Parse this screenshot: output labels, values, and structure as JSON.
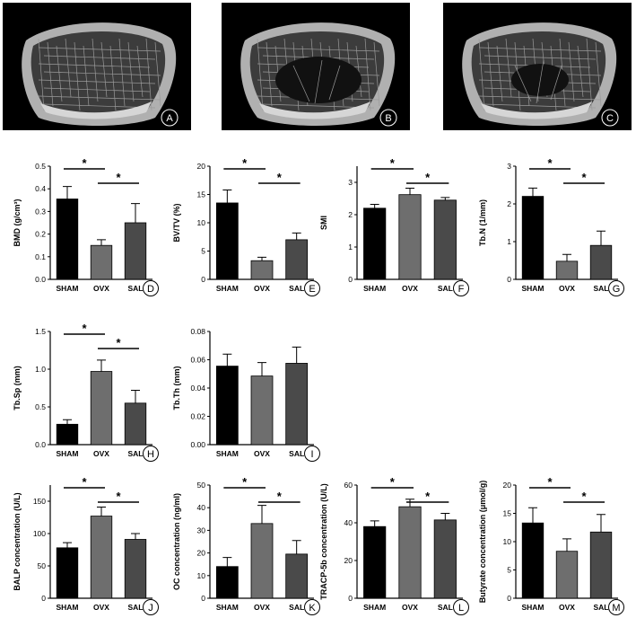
{
  "images": [
    {
      "panel": "A",
      "kind": "sham"
    },
    {
      "panel": "B",
      "kind": "ovx"
    },
    {
      "panel": "C",
      "kind": "sal"
    }
  ],
  "colors": [
    "#000000",
    "#6e6e6e",
    "#4a4a4a"
  ],
  "chart_data": [
    {
      "panel": "D",
      "type": "bar",
      "categories": [
        "SHAM",
        "OVX",
        "SAL"
      ],
      "values": [
        0.355,
        0.15,
        0.25
      ],
      "errors": [
        0.055,
        0.025,
        0.085
      ],
      "ylabel": "BMD (g/cm³)",
      "ylim": [
        0,
        0.5
      ],
      "ticks": [
        "0.0",
        "0.1",
        "0.2",
        "0.3",
        "0.4",
        "0.5"
      ],
      "significance": [
        {
          "from": 0,
          "to": 1,
          "label": "*"
        },
        {
          "from": 1,
          "to": 2,
          "label": "*"
        }
      ]
    },
    {
      "panel": "E",
      "type": "bar",
      "categories": [
        "SHAM",
        "OVX",
        "SAL"
      ],
      "values": [
        13.5,
        3.3,
        7.0
      ],
      "errors": [
        2.3,
        0.6,
        1.2
      ],
      "ylabel": "BV/TV (%)",
      "ylim": [
        0,
        20
      ],
      "ticks": [
        "0",
        "5",
        "10",
        "15",
        "20"
      ],
      "significance": [
        {
          "from": 0,
          "to": 1,
          "label": "*"
        },
        {
          "from": 1,
          "to": 2,
          "label": "*"
        }
      ]
    },
    {
      "panel": "F",
      "type": "bar",
      "categories": [
        "SHAM",
        "OVX",
        "SAL"
      ],
      "values": [
        2.2,
        2.62,
        2.45
      ],
      "errors": [
        0.12,
        0.2,
        0.08
      ],
      "ylabel": "SMI",
      "ylim": [
        0,
        3.5
      ],
      "ticks": [
        "0",
        "1",
        "2",
        "3"
      ],
      "significance": [
        {
          "from": 0,
          "to": 1,
          "label": "*"
        },
        {
          "from": 1,
          "to": 2,
          "label": "*"
        }
      ]
    },
    {
      "panel": "G",
      "type": "bar",
      "categories": [
        "SHAM",
        "OVX",
        "SAL"
      ],
      "values": [
        2.2,
        0.48,
        0.9
      ],
      "errors": [
        0.22,
        0.18,
        0.38
      ],
      "ylabel": "Tb.N (1/mm)",
      "ylim": [
        0,
        3
      ],
      "ticks": [
        "0",
        "1",
        "2",
        "3"
      ],
      "significance": [
        {
          "from": 0,
          "to": 1,
          "label": "*"
        },
        {
          "from": 1,
          "to": 2,
          "label": "*"
        }
      ]
    },
    {
      "panel": "H",
      "type": "bar",
      "categories": [
        "SHAM",
        "OVX",
        "SAL"
      ],
      "values": [
        0.27,
        0.97,
        0.55
      ],
      "errors": [
        0.06,
        0.15,
        0.17
      ],
      "ylabel": "Tb.Sp (mm)",
      "ylim": [
        0,
        1.5
      ],
      "ticks": [
        "0.0",
        "0.5",
        "1.0",
        "1.5"
      ],
      "significance": [
        {
          "from": 0,
          "to": 1,
          "label": "*"
        },
        {
          "from": 1,
          "to": 2,
          "label": "*"
        }
      ]
    },
    {
      "panel": "I",
      "type": "bar",
      "categories": [
        "SHAM",
        "OVX",
        "SAL"
      ],
      "values": [
        0.0555,
        0.0485,
        0.0575
      ],
      "errors": [
        0.0085,
        0.0095,
        0.0115
      ],
      "ylabel": "Tb.Th (mm)",
      "ylim": [
        0,
        0.08
      ],
      "ticks": [
        "0.00",
        "0.02",
        "0.04",
        "0.06",
        "0.08"
      ],
      "significance": []
    },
    {
      "panel": "J",
      "type": "bar",
      "categories": [
        "SHAM",
        "OVX",
        "SAL"
      ],
      "values": [
        78,
        127,
        91
      ],
      "errors": [
        8,
        14,
        9
      ],
      "ylabel": "BALP concentration  (U/L)",
      "ylim": [
        0,
        175
      ],
      "ticks": [
        "0",
        "50",
        "100",
        "150"
      ],
      "significance": [
        {
          "from": 0,
          "to": 1,
          "label": "*"
        },
        {
          "from": 1,
          "to": 2,
          "label": "*"
        }
      ]
    },
    {
      "panel": "K",
      "type": "bar",
      "categories": [
        "SHAM",
        "OVX",
        "SAL"
      ],
      "values": [
        14,
        33,
        19.5
      ],
      "errors": [
        4,
        8,
        6
      ],
      "ylabel": "OC concentration  (ng/ml)",
      "ylim": [
        0,
        50
      ],
      "ticks": [
        "0",
        "10",
        "20",
        "30",
        "40",
        "50"
      ],
      "significance": [
        {
          "from": 0,
          "to": 1,
          "label": "*"
        },
        {
          "from": 1,
          "to": 2,
          "label": "*"
        }
      ]
    },
    {
      "panel": "L",
      "type": "bar",
      "categories": [
        "SHAM",
        "OVX",
        "SAL"
      ],
      "values": [
        38,
        48.5,
        41.5
      ],
      "errors": [
        3,
        4,
        3.5
      ],
      "ylabel": "TRACP-5b concentration  (U/L)",
      "ylim": [
        0,
        60
      ],
      "ticks": [
        "0",
        "20",
        "40",
        "60"
      ],
      "significance": [
        {
          "from": 0,
          "to": 1,
          "label": "*"
        },
        {
          "from": 1,
          "to": 2,
          "label": "*"
        }
      ]
    },
    {
      "panel": "M",
      "type": "bar",
      "categories": [
        "SHAM",
        "OVX",
        "SAL"
      ],
      "values": [
        13.3,
        8.3,
        11.7
      ],
      "errors": [
        2.7,
        2.2,
        3.1
      ],
      "ylabel": "Butyrate concentration  (μmol/g)",
      "ylim": [
        0,
        20
      ],
      "ticks": [
        "0",
        "5",
        "10",
        "15",
        "20"
      ],
      "significance": [
        {
          "from": 0,
          "to": 1,
          "label": "*"
        },
        {
          "from": 1,
          "to": 2,
          "label": "*"
        }
      ]
    }
  ]
}
